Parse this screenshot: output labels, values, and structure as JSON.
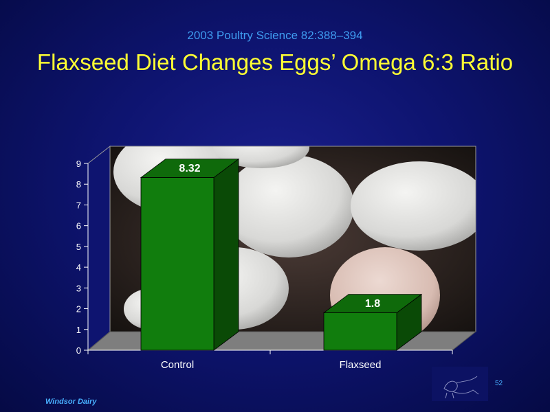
{
  "slide": {
    "subtitle": "2003 Poultry Science 82:388–394",
    "title": "Flaxseed Diet Changes Eggs’ Omega 6:3 Ratio",
    "footer": "Windsor Dairy",
    "page_number": "52"
  },
  "colors": {
    "title": "#ffff33",
    "subtitle": "#3f9cf0",
    "bar_front": "#117d0d",
    "bar_side": "#0a4a06",
    "bar_top": "#0f6a0b"
  },
  "chart_data": {
    "type": "bar",
    "categories": [
      "Control",
      "Flaxseed"
    ],
    "values": [
      8.32,
      1.8
    ],
    "data_labels": [
      "8.32",
      "1.8"
    ],
    "ylim": [
      0,
      9
    ],
    "yticks": [
      "0",
      "1",
      "2",
      "3",
      "4",
      "5",
      "6",
      "7",
      "8",
      "9"
    ],
    "xlabel": "",
    "ylabel": "",
    "style": "3d",
    "background_image": "eggs"
  }
}
